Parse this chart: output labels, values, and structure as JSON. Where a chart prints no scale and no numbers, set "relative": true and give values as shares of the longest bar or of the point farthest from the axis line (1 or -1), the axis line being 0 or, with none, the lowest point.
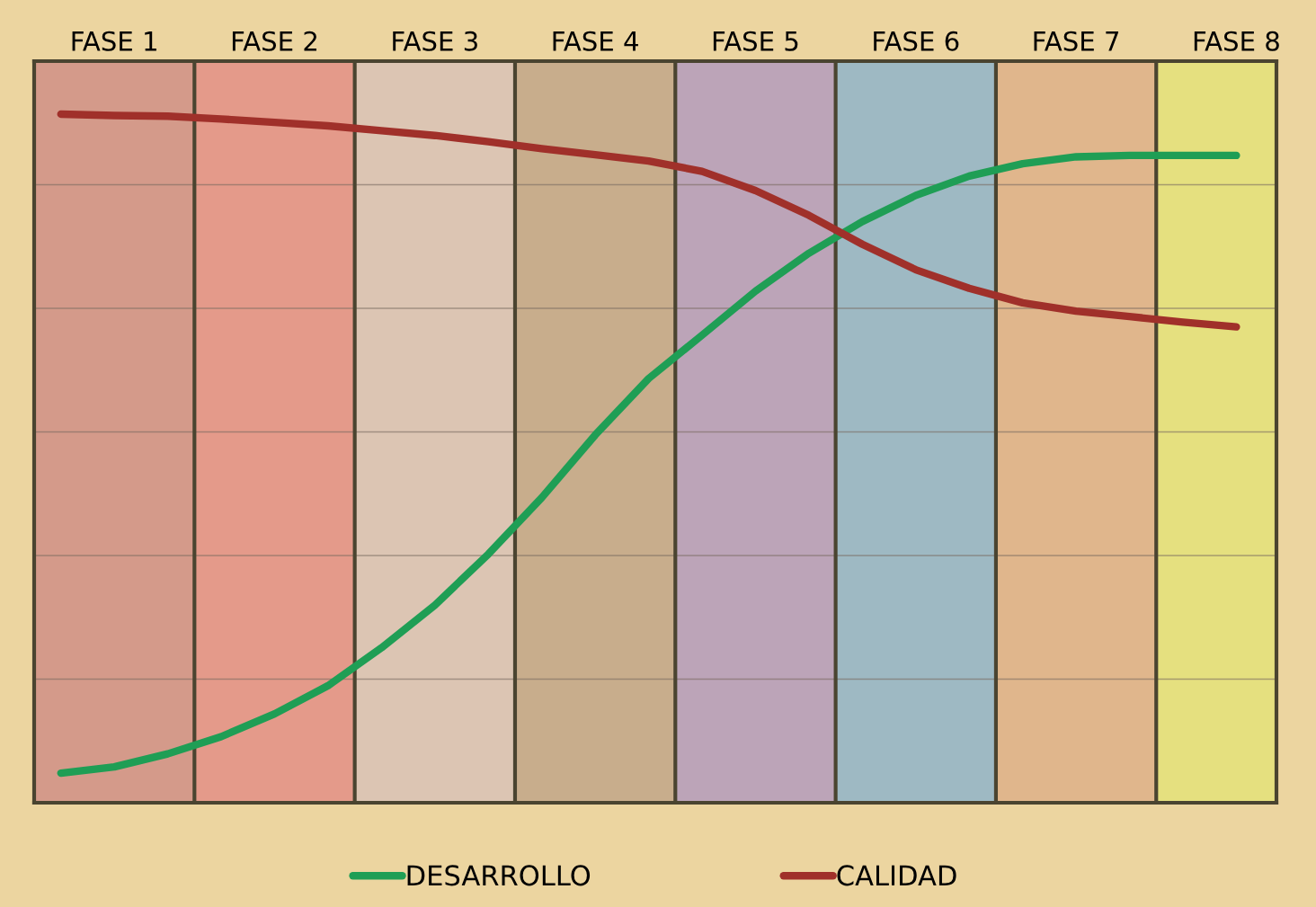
{
  "chart_data": {
    "type": "line",
    "relative": true,
    "grid": "y",
    "legend": "bottom",
    "marker": "none",
    "line_style": "solid",
    "categories": [
      null,
      "FASE 1",
      null,
      null,
      "FASE 2",
      null,
      null,
      "FASE 3",
      null,
      null,
      "FASE 4",
      null,
      null,
      "FASE 5",
      null,
      null,
      "FASE 6",
      null,
      null,
      "FASE 7",
      null,
      null,
      "FASE 8"
    ],
    "series": [
      {
        "name": "DESARROLLO",
        "color": "#1f9e55",
        "values": [
          0.043,
          0.052,
          0.071,
          0.096,
          0.129,
          0.17,
          0.225,
          0.287,
          0.361,
          0.443,
          0.534,
          0.616,
          0.679,
          0.743,
          0.798,
          0.844,
          0.882,
          0.91,
          0.928,
          0.938,
          0.94,
          0.94,
          0.94
        ]
      },
      {
        "name": "CALIDAD",
        "color": "#a0302a",
        "values": [
          1.0,
          0.998,
          0.997,
          0.993,
          0.988,
          0.983,
          0.976,
          0.969,
          0.96,
          0.95,
          0.941,
          0.932,
          0.917,
          0.889,
          0.853,
          0.811,
          0.774,
          0.747,
          0.726,
          0.714,
          0.706,
          0.698,
          0.691
        ]
      }
    ]
  }
}
